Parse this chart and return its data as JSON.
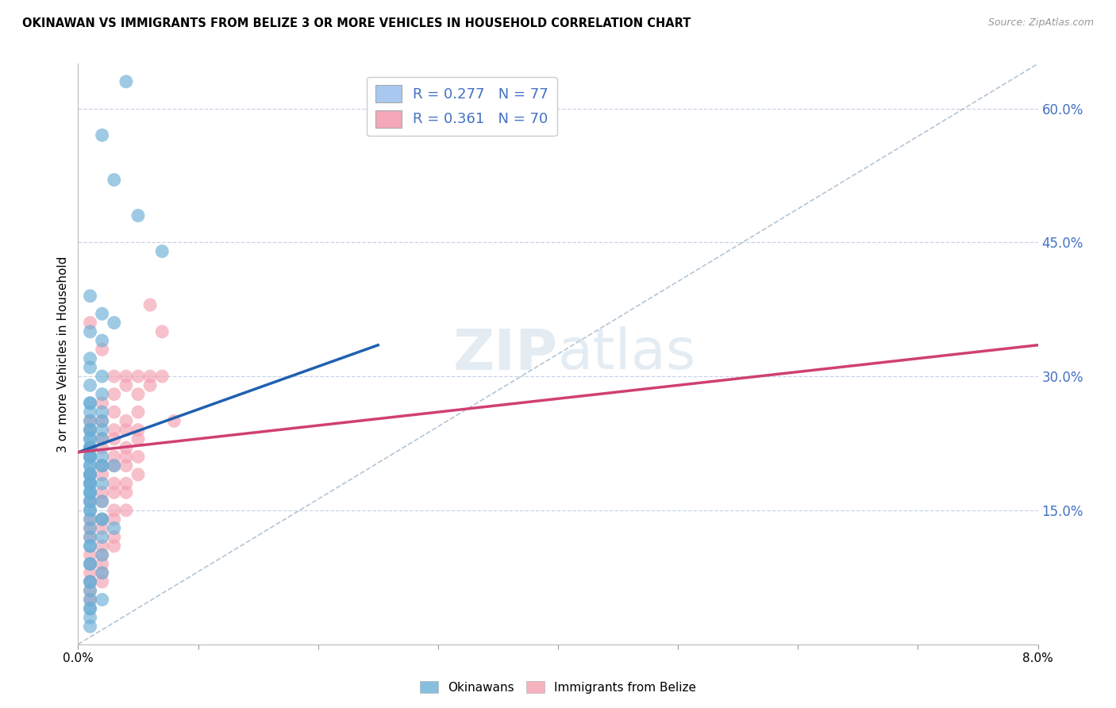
{
  "title": "OKINAWAN VS IMMIGRANTS FROM BELIZE 3 OR MORE VEHICLES IN HOUSEHOLD CORRELATION CHART",
  "source": "Source: ZipAtlas.com",
  "ylabel": "3 or more Vehicles in Household",
  "x_min": 0.0,
  "x_max": 0.08,
  "y_min": 0.0,
  "y_max": 0.65,
  "y_ticks_right": [
    0.15,
    0.3,
    0.45,
    0.6
  ],
  "y_tick_labels_right": [
    "15.0%",
    "30.0%",
    "45.0%",
    "60.0%"
  ],
  "legend_entries": [
    {
      "label": "R = 0.277   N = 77",
      "color": "#a8c8f0"
    },
    {
      "label": "R = 0.361   N = 70",
      "color": "#f4a8b8"
    }
  ],
  "okinawan_color": "#6baed6",
  "belize_color": "#f4a0b0",
  "grid_color": "#c8d4e8",
  "trend_blue": "#2060b0",
  "trend_pink": "#d04070",
  "diag_color": "#a0b8cc",
  "legend_labels": [
    "Okinawans",
    "Immigrants from Belize"
  ],
  "okinawan_N": 77,
  "belize_N": 70,
  "ok_x": [
    0.004,
    0.002,
    0.003,
    0.005,
    0.007,
    0.001,
    0.002,
    0.001,
    0.003,
    0.002,
    0.001,
    0.001,
    0.002,
    0.001,
    0.002,
    0.001,
    0.001,
    0.002,
    0.001,
    0.002,
    0.001,
    0.001,
    0.001,
    0.002,
    0.001,
    0.001,
    0.002,
    0.001,
    0.001,
    0.001,
    0.001,
    0.001,
    0.002,
    0.001,
    0.001,
    0.002,
    0.001,
    0.003,
    0.002,
    0.001,
    0.001,
    0.001,
    0.001,
    0.001,
    0.001,
    0.001,
    0.002,
    0.001,
    0.001,
    0.001,
    0.001,
    0.002,
    0.001,
    0.001,
    0.001,
    0.002,
    0.001,
    0.002,
    0.003,
    0.001,
    0.001,
    0.002,
    0.001,
    0.001,
    0.002,
    0.001,
    0.001,
    0.002,
    0.001,
    0.001,
    0.001,
    0.001,
    0.002,
    0.001,
    0.001,
    0.001,
    0.001
  ],
  "ok_y": [
    0.63,
    0.57,
    0.52,
    0.48,
    0.44,
    0.39,
    0.37,
    0.35,
    0.36,
    0.34,
    0.32,
    0.31,
    0.3,
    0.29,
    0.28,
    0.27,
    0.27,
    0.26,
    0.26,
    0.25,
    0.25,
    0.24,
    0.24,
    0.24,
    0.23,
    0.23,
    0.23,
    0.22,
    0.22,
    0.22,
    0.22,
    0.21,
    0.21,
    0.21,
    0.21,
    0.2,
    0.2,
    0.2,
    0.2,
    0.2,
    0.19,
    0.19,
    0.19,
    0.18,
    0.18,
    0.18,
    0.18,
    0.17,
    0.17,
    0.17,
    0.16,
    0.16,
    0.16,
    0.15,
    0.15,
    0.14,
    0.14,
    0.14,
    0.13,
    0.13,
    0.12,
    0.12,
    0.11,
    0.11,
    0.1,
    0.09,
    0.09,
    0.08,
    0.07,
    0.07,
    0.06,
    0.05,
    0.05,
    0.04,
    0.04,
    0.03,
    0.02
  ],
  "bz_x": [
    0.001,
    0.002,
    0.003,
    0.004,
    0.005,
    0.006,
    0.007,
    0.008,
    0.003,
    0.004,
    0.005,
    0.006,
    0.002,
    0.003,
    0.004,
    0.005,
    0.001,
    0.002,
    0.003,
    0.004,
    0.005,
    0.001,
    0.002,
    0.003,
    0.004,
    0.005,
    0.001,
    0.002,
    0.003,
    0.004,
    0.005,
    0.001,
    0.002,
    0.003,
    0.004,
    0.005,
    0.001,
    0.002,
    0.003,
    0.004,
    0.001,
    0.002,
    0.003,
    0.004,
    0.001,
    0.002,
    0.003,
    0.004,
    0.001,
    0.002,
    0.003,
    0.001,
    0.002,
    0.003,
    0.001,
    0.002,
    0.003,
    0.001,
    0.002,
    0.001,
    0.002,
    0.001,
    0.002,
    0.001,
    0.002,
    0.001,
    0.001,
    0.006,
    0.001,
    0.007
  ],
  "bz_y": [
    0.36,
    0.33,
    0.3,
    0.3,
    0.3,
    0.29,
    0.3,
    0.25,
    0.28,
    0.29,
    0.28,
    0.3,
    0.27,
    0.26,
    0.25,
    0.26,
    0.25,
    0.25,
    0.24,
    0.24,
    0.24,
    0.24,
    0.23,
    0.23,
    0.22,
    0.23,
    0.22,
    0.22,
    0.21,
    0.21,
    0.21,
    0.21,
    0.2,
    0.2,
    0.2,
    0.19,
    0.19,
    0.19,
    0.18,
    0.18,
    0.18,
    0.17,
    0.17,
    0.17,
    0.16,
    0.16,
    0.15,
    0.15,
    0.14,
    0.14,
    0.14,
    0.13,
    0.13,
    0.12,
    0.12,
    0.11,
    0.11,
    0.1,
    0.1,
    0.09,
    0.09,
    0.08,
    0.08,
    0.07,
    0.07,
    0.06,
    0.05,
    0.38,
    0.22,
    0.35
  ],
  "blue_trend_x": [
    0.0,
    0.025
  ],
  "blue_trend_y": [
    0.215,
    0.335
  ],
  "pink_trend_x": [
    0.0,
    0.08
  ],
  "pink_trend_y": [
    0.215,
    0.335
  ]
}
